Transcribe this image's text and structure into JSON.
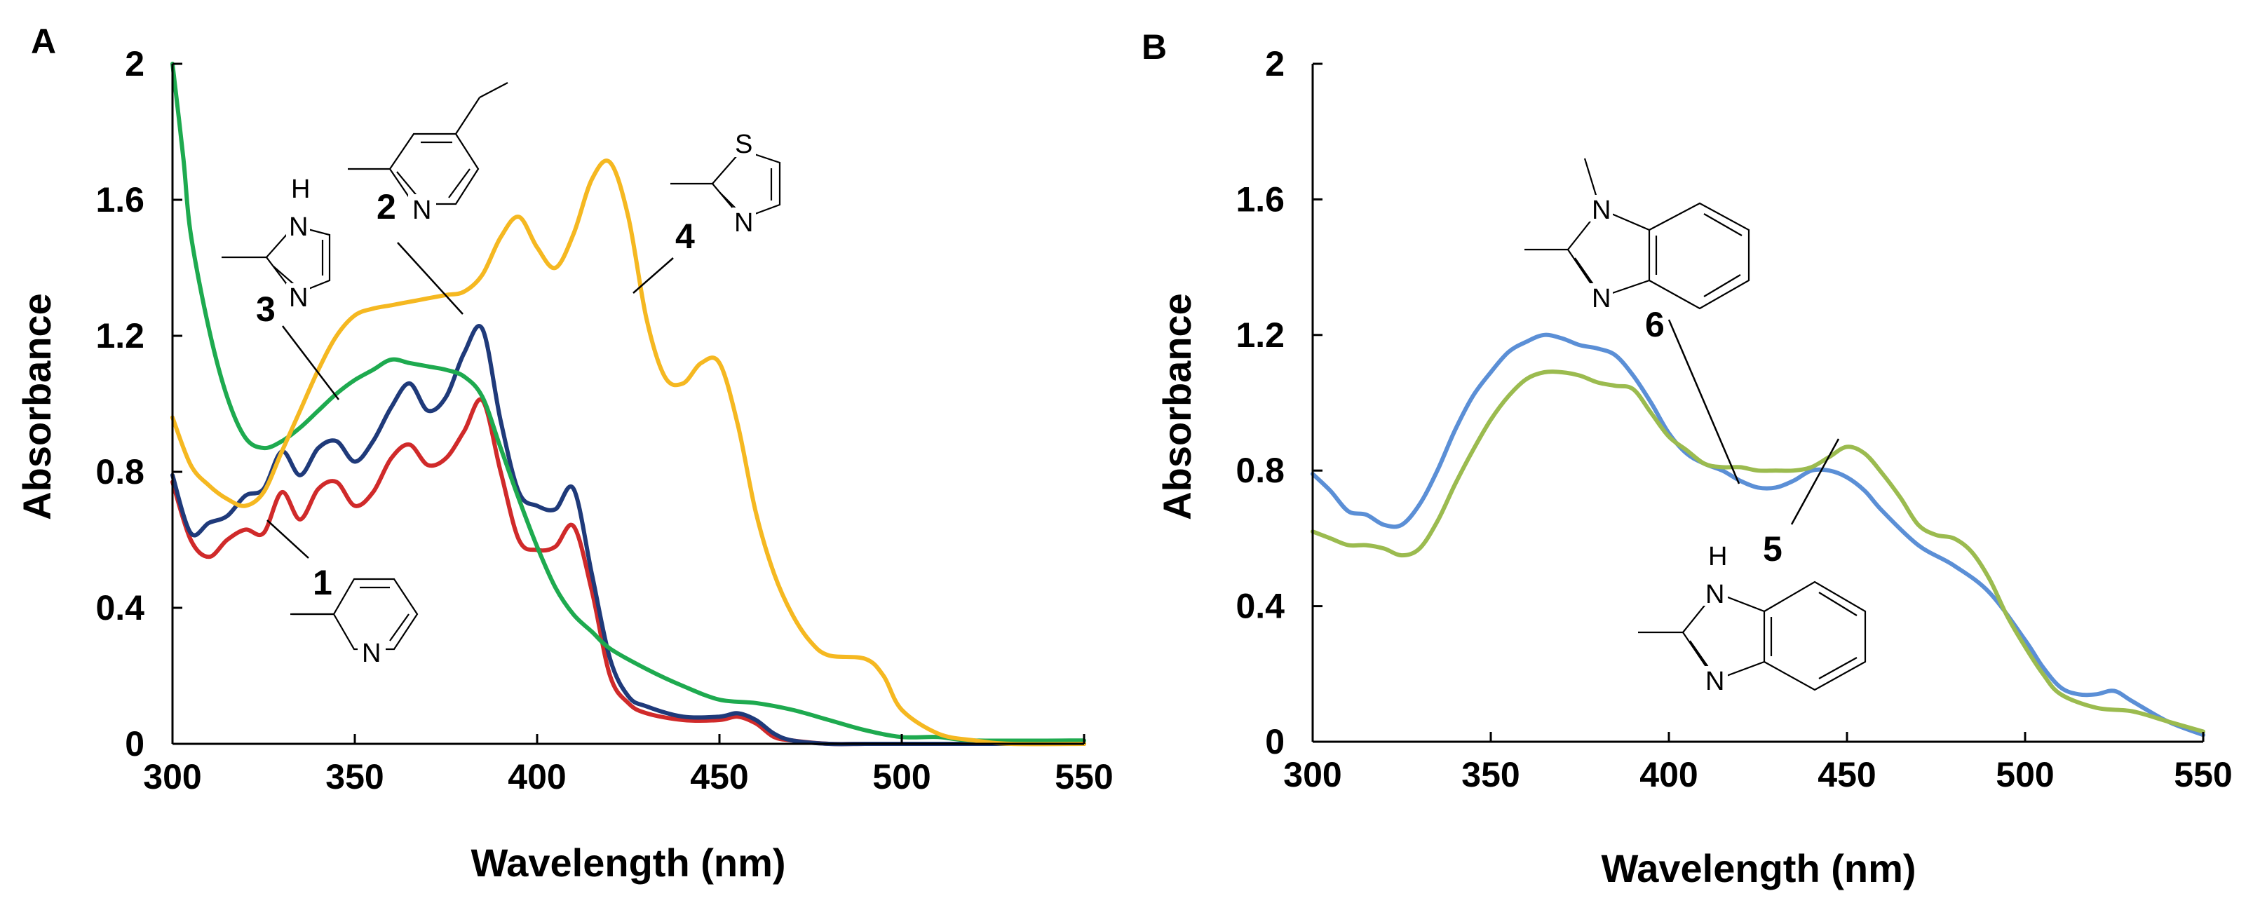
{
  "chart_data": [
    {
      "panel": "A",
      "type": "line",
      "xlabel": "Wavelength (nm)",
      "ylabel": "Absorbance",
      "xlim": [
        300,
        550
      ],
      "ylim": [
        0,
        2
      ],
      "xticks": [
        "300",
        "350",
        "400",
        "450",
        "500",
        "550"
      ],
      "yticks": [
        "0",
        "0.4",
        "0.8",
        "1.2",
        "1.6",
        "2"
      ],
      "series": [
        {
          "name": "1",
          "color": "#d02a2a",
          "x": [
            300,
            305,
            310,
            315,
            320,
            325,
            330,
            335,
            340,
            345,
            350,
            355,
            360,
            365,
            370,
            375,
            380,
            385,
            390,
            395,
            400,
            405,
            410,
            415,
            420,
            425,
            430,
            440,
            450,
            455,
            460,
            465,
            470,
            480,
            490,
            500,
            550
          ],
          "y": [
            0.77,
            0.6,
            0.55,
            0.6,
            0.63,
            0.62,
            0.74,
            0.66,
            0.75,
            0.77,
            0.7,
            0.74,
            0.84,
            0.88,
            0.82,
            0.84,
            0.92,
            1.01,
            0.8,
            0.6,
            0.57,
            0.58,
            0.64,
            0.45,
            0.2,
            0.12,
            0.09,
            0.07,
            0.07,
            0.08,
            0.06,
            0.02,
            0.01,
            0.0,
            0.0,
            0.0,
            0.0
          ]
        },
        {
          "name": "2",
          "color": "#1f3a7a",
          "x": [
            300,
            305,
            310,
            315,
            320,
            325,
            330,
            335,
            340,
            345,
            350,
            355,
            360,
            365,
            370,
            375,
            380,
            385,
            390,
            395,
            400,
            405,
            410,
            415,
            420,
            425,
            430,
            440,
            450,
            455,
            460,
            465,
            470,
            480,
            490,
            500,
            550
          ],
          "y": [
            0.79,
            0.62,
            0.65,
            0.67,
            0.73,
            0.75,
            0.86,
            0.79,
            0.87,
            0.89,
            0.83,
            0.89,
            0.99,
            1.06,
            0.98,
            1.02,
            1.15,
            1.22,
            0.95,
            0.74,
            0.7,
            0.69,
            0.75,
            0.5,
            0.25,
            0.14,
            0.11,
            0.08,
            0.08,
            0.09,
            0.07,
            0.03,
            0.01,
            0.0,
            0.0,
            0.0,
            0.0
          ]
        },
        {
          "name": "3",
          "color": "#1eaa4f",
          "x": [
            300,
            303,
            305,
            310,
            315,
            320,
            325,
            330,
            335,
            340,
            345,
            350,
            355,
            360,
            365,
            370,
            375,
            380,
            385,
            390,
            395,
            400,
            405,
            410,
            415,
            420,
            430,
            440,
            450,
            460,
            470,
            480,
            490,
            500,
            510,
            520,
            550
          ],
          "y": [
            2.0,
            1.72,
            1.5,
            1.22,
            1.02,
            0.9,
            0.87,
            0.89,
            0.93,
            0.98,
            1.03,
            1.07,
            1.1,
            1.13,
            1.12,
            1.11,
            1.1,
            1.08,
            1.02,
            0.87,
            0.72,
            0.58,
            0.46,
            0.38,
            0.33,
            0.28,
            0.22,
            0.17,
            0.13,
            0.12,
            0.1,
            0.07,
            0.04,
            0.02,
            0.02,
            0.01,
            0.01
          ]
        },
        {
          "name": "4",
          "color": "#f5b821",
          "x": [
            300,
            305,
            310,
            315,
            320,
            325,
            330,
            335,
            340,
            345,
            350,
            355,
            360,
            365,
            370,
            375,
            380,
            385,
            390,
            395,
            400,
            405,
            410,
            415,
            420,
            425,
            430,
            435,
            440,
            445,
            450,
            455,
            460,
            465,
            470,
            475,
            480,
            490,
            495,
            500,
            510,
            520,
            530,
            550
          ],
          "y": [
            0.96,
            0.82,
            0.76,
            0.72,
            0.7,
            0.74,
            0.86,
            0.98,
            1.1,
            1.2,
            1.26,
            1.28,
            1.29,
            1.3,
            1.31,
            1.32,
            1.33,
            1.38,
            1.49,
            1.55,
            1.46,
            1.4,
            1.5,
            1.66,
            1.71,
            1.55,
            1.25,
            1.08,
            1.06,
            1.12,
            1.12,
            0.94,
            0.68,
            0.5,
            0.38,
            0.3,
            0.26,
            0.25,
            0.2,
            0.1,
            0.03,
            0.01,
            0.0,
            0.0
          ]
        }
      ],
      "labels": [
        "1",
        "2",
        "3",
        "4"
      ],
      "structure_atoms": {
        "pyridine": "N",
        "imidazole_nh": "H",
        "imidazole_n_top": "N",
        "imidazole_n_bottom": "N",
        "lutidine": "N",
        "thiazole_s": "S",
        "thiazole_n": "N"
      }
    },
    {
      "panel": "B",
      "type": "line",
      "xlabel": "Wavelength (nm)",
      "ylabel": "Absorbance",
      "xlim": [
        300,
        550
      ],
      "ylim": [
        0,
        2
      ],
      "xticks": [
        "300",
        "350",
        "400",
        "450",
        "500",
        "550"
      ],
      "yticks": [
        "0",
        "0.4",
        "0.8",
        "1.2",
        "1.6",
        "2"
      ],
      "series": [
        {
          "name": "6",
          "color": "#5b8fd6",
          "x": [
            300,
            305,
            310,
            315,
            320,
            325,
            330,
            335,
            340,
            345,
            350,
            355,
            360,
            365,
            370,
            375,
            380,
            385,
            390,
            395,
            400,
            405,
            410,
            415,
            420,
            425,
            430,
            435,
            440,
            445,
            450,
            455,
            460,
            470,
            480,
            490,
            500,
            505,
            510,
            515,
            520,
            525,
            530,
            540,
            550
          ],
          "y": [
            0.79,
            0.74,
            0.68,
            0.67,
            0.64,
            0.64,
            0.7,
            0.8,
            0.92,
            1.02,
            1.09,
            1.15,
            1.18,
            1.2,
            1.19,
            1.17,
            1.16,
            1.14,
            1.08,
            1.0,
            0.91,
            0.85,
            0.82,
            0.8,
            0.77,
            0.75,
            0.75,
            0.77,
            0.8,
            0.8,
            0.78,
            0.74,
            0.68,
            0.58,
            0.52,
            0.44,
            0.3,
            0.22,
            0.16,
            0.14,
            0.14,
            0.15,
            0.12,
            0.06,
            0.02
          ]
        },
        {
          "name": "5",
          "color": "#9bbb4f",
          "x": [
            300,
            305,
            310,
            315,
            320,
            325,
            330,
            335,
            340,
            345,
            350,
            355,
            360,
            365,
            370,
            375,
            380,
            385,
            390,
            395,
            400,
            405,
            410,
            415,
            420,
            425,
            430,
            435,
            440,
            445,
            450,
            455,
            460,
            465,
            470,
            475,
            480,
            485,
            490,
            495,
            500,
            505,
            510,
            520,
            530,
            540,
            550
          ],
          "y": [
            0.62,
            0.6,
            0.58,
            0.58,
            0.57,
            0.55,
            0.57,
            0.65,
            0.76,
            0.86,
            0.95,
            1.02,
            1.07,
            1.09,
            1.09,
            1.08,
            1.06,
            1.05,
            1.04,
            0.97,
            0.9,
            0.86,
            0.82,
            0.81,
            0.81,
            0.8,
            0.8,
            0.8,
            0.81,
            0.84,
            0.87,
            0.85,
            0.79,
            0.72,
            0.64,
            0.61,
            0.6,
            0.56,
            0.48,
            0.37,
            0.28,
            0.2,
            0.14,
            0.1,
            0.09,
            0.06,
            0.03
          ]
        }
      ],
      "labels": [
        "6",
        "5"
      ],
      "structure_atoms": {
        "methylbenzimidazole_n1": "N",
        "methylbenzimidazole_n3": "N",
        "benzimidazole_h": "H",
        "benzimidazole_n1": "N",
        "benzimidazole_n3": "N"
      }
    }
  ]
}
